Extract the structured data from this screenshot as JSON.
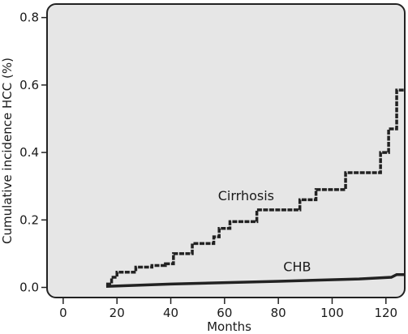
{
  "chart_data": {
    "type": "line",
    "title": "",
    "xlabel": "Months",
    "ylabel": "Cumulative incidence HCC (%)",
    "xlim": [
      -6,
      127
    ],
    "ylim": [
      -0.03,
      0.84
    ],
    "xticks": [
      0,
      20,
      40,
      60,
      80,
      100,
      120
    ],
    "yticks": [
      0.0,
      0.2,
      0.4,
      0.6,
      0.8
    ],
    "xtick_labels": [
      "0",
      "20",
      "40",
      "60",
      "80",
      "100",
      "120"
    ],
    "ytick_labels": [
      "0.0",
      "0.2",
      "0.4",
      "0.6",
      "0.8"
    ],
    "grid": false,
    "background_color": "#e6e6e6",
    "line_color": "#222222",
    "series": [
      {
        "name": "Cirrhosis",
        "style": "dashed-step",
        "x": [
          16,
          18,
          20,
          27,
          33,
          38,
          41,
          48,
          56,
          58,
          62,
          72,
          88,
          94,
          105,
          118,
          121,
          124,
          127
        ],
        "y": [
          0.01,
          0.03,
          0.045,
          0.06,
          0.065,
          0.07,
          0.1,
          0.13,
          0.15,
          0.175,
          0.195,
          0.23,
          0.26,
          0.29,
          0.34,
          0.4,
          0.47,
          0.585,
          0.585
        ]
      },
      {
        "name": "CHB",
        "style": "solid",
        "x": [
          16,
          40,
          80,
          110,
          122,
          124,
          127
        ],
        "y": [
          0.003,
          0.01,
          0.018,
          0.025,
          0.03,
          0.038,
          0.038
        ]
      }
    ]
  }
}
